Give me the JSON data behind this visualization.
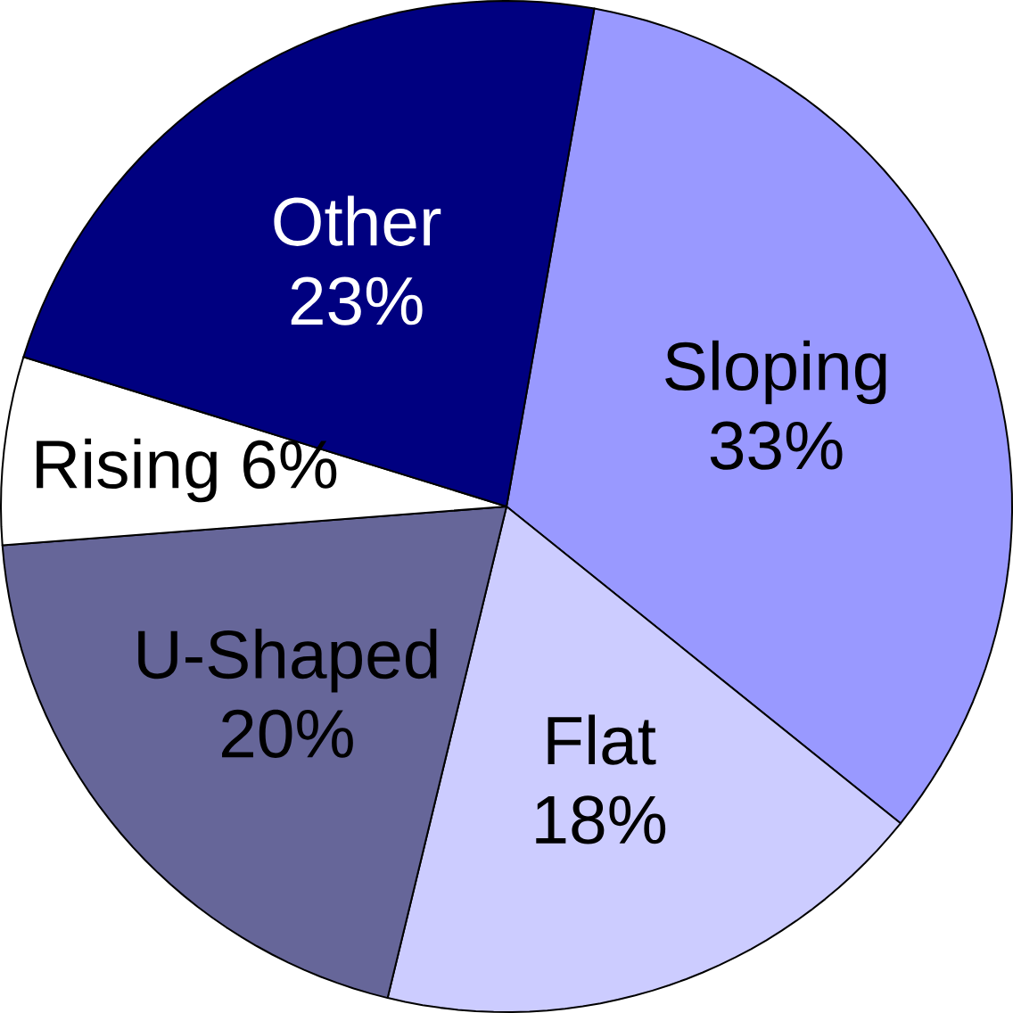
{
  "chart_data": {
    "type": "pie",
    "categories": [
      "Sloping",
      "Flat",
      "U-Shaped",
      "Rising",
      "Other"
    ],
    "values": [
      33,
      18,
      20,
      6,
      23
    ],
    "value_labels": [
      "33%",
      "18%",
      "20%",
      "6%",
      "23%"
    ],
    "colors": [
      "#9999ff",
      "#ccccff",
      "#666699",
      "#ffffff",
      "#000080"
    ]
  }
}
